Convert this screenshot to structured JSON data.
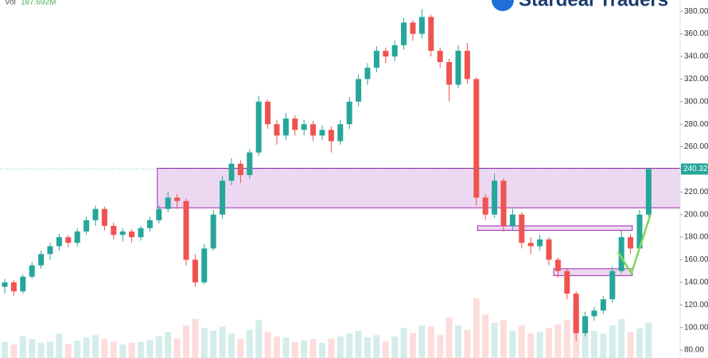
{
  "chart_data": {
    "type": "candlestick",
    "volume_label": "Vol",
    "volume_value": "187.692M",
    "watermark": "Stardeal Traders",
    "up_color": "#26a69a",
    "down_color": "#ef5350",
    "ylim": [
      73,
      390
    ],
    "yticks": [
      {
        "value": 80,
        "label": "80.00"
      },
      {
        "value": 100,
        "label": "100.00"
      },
      {
        "value": 120,
        "label": "120.00"
      },
      {
        "value": 140,
        "label": "140.00"
      },
      {
        "value": 160,
        "label": "160.00"
      },
      {
        "value": 180,
        "label": "180.00"
      },
      {
        "value": 200,
        "label": "200.00"
      },
      {
        "value": 220,
        "label": "220.00"
      },
      {
        "value": 240,
        "label": "240.00"
      },
      {
        "value": 260,
        "label": "260.00"
      },
      {
        "value": 280,
        "label": "280.00"
      },
      {
        "value": 300,
        "label": "300.00"
      },
      {
        "value": 320,
        "label": "320.00"
      },
      {
        "value": 340,
        "label": "340.00"
      },
      {
        "value": 360,
        "label": "360.00"
      },
      {
        "value": 380,
        "label": "380.00"
      }
    ],
    "ohlc": [
      [
        136,
        143,
        130,
        140
      ],
      [
        140,
        142,
        128,
        132
      ],
      [
        132,
        147,
        130,
        145
      ],
      [
        145,
        158,
        143,
        155
      ],
      [
        155,
        168,
        152,
        165
      ],
      [
        165,
        175,
        160,
        172
      ],
      [
        172,
        183,
        168,
        180
      ],
      [
        180,
        182,
        171,
        175
      ],
      [
        175,
        188,
        172,
        185
      ],
      [
        185,
        198,
        182,
        195
      ],
      [
        195,
        208,
        190,
        205
      ],
      [
        205,
        207,
        186,
        190
      ],
      [
        190,
        193,
        178,
        182
      ],
      [
        182,
        188,
        176,
        185
      ],
      [
        185,
        187,
        175,
        180
      ],
      [
        180,
        190,
        177,
        188
      ],
      [
        188,
        198,
        185,
        195
      ],
      [
        195,
        208,
        192,
        205
      ],
      [
        205,
        220,
        202,
        215
      ],
      [
        215,
        218,
        205,
        212
      ],
      [
        212,
        214,
        155,
        160
      ],
      [
        160,
        165,
        136,
        140
      ],
      [
        140,
        174,
        138,
        170
      ],
      [
        170,
        204,
        168,
        200
      ],
      [
        200,
        234,
        196,
        230
      ],
      [
        230,
        250,
        226,
        245
      ],
      [
        245,
        248,
        228,
        235
      ],
      [
        235,
        258,
        232,
        255
      ],
      [
        255,
        305,
        252,
        300
      ],
      [
        300,
        302,
        276,
        280
      ],
      [
        280,
        284,
        262,
        270
      ],
      [
        270,
        290,
        266,
        285
      ],
      [
        285,
        288,
        270,
        275
      ],
      [
        275,
        284,
        270,
        280
      ],
      [
        280,
        283,
        265,
        270
      ],
      [
        270,
        279,
        266,
        275
      ],
      [
        275,
        278,
        255,
        265
      ],
      [
        265,
        284,
        262,
        280
      ],
      [
        280,
        304,
        276,
        300
      ],
      [
        300,
        324,
        296,
        320
      ],
      [
        320,
        334,
        315,
        330
      ],
      [
        330,
        349,
        326,
        345
      ],
      [
        345,
        348,
        334,
        340
      ],
      [
        340,
        354,
        336,
        350
      ],
      [
        350,
        374,
        346,
        370
      ],
      [
        370,
        372,
        354,
        360
      ],
      [
        360,
        382,
        356,
        375
      ],
      [
        375,
        377,
        340,
        345
      ],
      [
        345,
        348,
        330,
        335
      ],
      [
        335,
        338,
        300,
        315
      ],
      [
        315,
        350,
        312,
        345
      ],
      [
        345,
        352,
        316,
        320
      ],
      [
        320,
        322,
        208,
        215
      ],
      [
        215,
        218,
        195,
        200
      ],
      [
        200,
        236,
        197,
        230
      ],
      [
        230,
        232,
        185,
        190
      ],
      [
        190,
        205,
        186,
        200
      ],
      [
        200,
        202,
        170,
        175
      ],
      [
        175,
        180,
        165,
        172
      ],
      [
        172,
        182,
        168,
        178
      ],
      [
        178,
        180,
        155,
        160
      ],
      [
        160,
        162,
        144,
        150
      ],
      [
        150,
        152,
        125,
        130
      ],
      [
        130,
        132,
        88,
        95
      ],
      [
        95,
        114,
        92,
        110
      ],
      [
        110,
        118,
        106,
        115
      ],
      [
        115,
        128,
        112,
        125
      ],
      [
        125,
        154,
        122,
        150
      ],
      [
        150,
        186,
        148,
        180
      ],
      [
        180,
        183,
        165,
        170
      ],
      [
        170,
        204,
        168,
        200
      ],
      [
        200,
        241,
        198,
        240.32
      ]
    ],
    "volume": [
      30,
      25,
      40,
      35,
      28,
      30,
      45,
      26,
      32,
      38,
      42,
      35,
      30,
      25,
      28,
      30,
      33,
      40,
      48,
      36,
      60,
      72,
      55,
      50,
      58,
      45,
      35,
      52,
      70,
      48,
      40,
      38,
      30,
      33,
      35,
      28,
      36,
      40,
      45,
      50,
      38,
      42,
      30,
      40,
      55,
      46,
      60,
      58,
      42,
      75,
      60,
      52,
      110,
      80,
      65,
      70,
      50,
      60,
      45,
      48,
      55,
      62,
      70,
      95,
      75,
      50,
      45,
      60,
      72,
      48,
      55,
      65
    ],
    "zones": [
      {
        "top": 241,
        "bottom": 206,
        "start": 17,
        "extend": true
      },
      {
        "top": 190,
        "bottom": 186,
        "start": 52.3,
        "end": 69.2
      },
      {
        "top": 152,
        "bottom": 146,
        "start": 60.7,
        "end": 69.2
      }
    ],
    "zone_color": "#9c27b0",
    "trendline": {
      "x": [
        67.6,
        69.1,
        71.2
      ],
      "y": [
        167,
        148,
        200
      ],
      "color": "#7ed957"
    }
  }
}
